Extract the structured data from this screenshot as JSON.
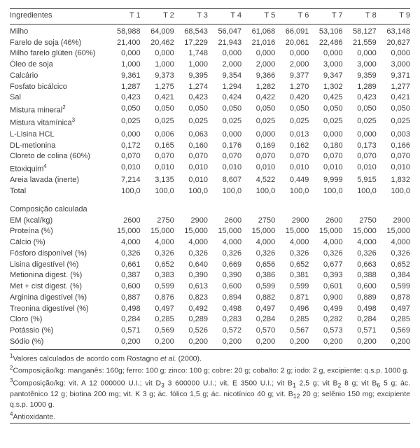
{
  "headers": [
    "Ingredientes",
    "T 1",
    "T 2",
    "T 3",
    "T 4",
    "T 5",
    "T 6",
    "T 7",
    "T 8",
    "T 9"
  ],
  "ingredients": [
    {
      "label": "Milho",
      "v": [
        "58,988",
        "64,009",
        "68,543",
        "56,047",
        "61,068",
        "66,091",
        "53,106",
        "58,127",
        "63,148"
      ]
    },
    {
      "label": "Farelo de soja (46%)",
      "v": [
        "21,400",
        "20,462",
        "17,229",
        "21,943",
        "21,016",
        "20,061",
        "22,486",
        "21,559",
        "20,627"
      ]
    },
    {
      "label": "Milho farelo glúten (60%)",
      "v": [
        "0,000",
        "0,000",
        "1,748",
        "0,000",
        "0,000",
        "0,000",
        "0,000",
        "0,000",
        "0,000"
      ]
    },
    {
      "label": "Óleo de soja",
      "v": [
        "1,000",
        "1,000",
        "1,000",
        "2,000",
        "2,000",
        "2,000",
        "3,000",
        "3,000",
        "3,000"
      ]
    },
    {
      "label": "Calcário",
      "v": [
        "9,361",
        "9,373",
        "9,395",
        "9,354",
        "9,366",
        "9,377",
        "9,347",
        "9,359",
        "9,371"
      ]
    },
    {
      "label": "Fosfato bicálcico",
      "v": [
        "1,287",
        "1,275",
        "1,274",
        "1,294",
        "1,282",
        "1,270",
        "1,302",
        "1,289",
        "1,277"
      ]
    },
    {
      "label": "Sal",
      "v": [
        "0,423",
        "0,421",
        "0,423",
        "0,424",
        "0,422",
        "0,420",
        "0,425",
        "0,423",
        "0,421"
      ]
    },
    {
      "label": "Mistura mineral",
      "sup": "2",
      "v": [
        "0,050",
        "0,050",
        "0,050",
        "0,050",
        "0,050",
        "0,050",
        "0,050",
        "0,050",
        "0,050"
      ]
    },
    {
      "label": "Mistura vitamínica",
      "sup": "3",
      "v": [
        "0,025",
        "0,025",
        "0,025",
        "0,025",
        "0,025",
        "0,025",
        "0,025",
        "0,025",
        "0,025"
      ]
    },
    {
      "label": "L-Lisina HCL",
      "v": [
        "0,000",
        "0,006",
        "0,063",
        "0,000",
        "0,000",
        "0,013",
        "0,000",
        "0,000",
        "0,003"
      ]
    },
    {
      "label": "DL-metionina",
      "v": [
        "0,172",
        "0,165",
        "0,160",
        "0,176",
        "0,169",
        "0,162",
        "0,180",
        "0,173",
        "0,166"
      ]
    },
    {
      "label": "Cloreto de colina (60%)",
      "v": [
        "0,070",
        "0,070",
        "0,070",
        "0,070",
        "0,070",
        "0,070",
        "0,070",
        "0,070",
        "0,070"
      ]
    },
    {
      "label": "Etoxiquim",
      "sup": "4",
      "v": [
        "0,010",
        "0,010",
        "0,010",
        "0,010",
        "0,010",
        "0,010",
        "0,010",
        "0,010",
        "0,010"
      ]
    },
    {
      "label": "Areia lavada (inerte)",
      "v": [
        "7,214",
        "3,135",
        "0,010",
        "8,607",
        "4,522",
        "0,449",
        "9,999",
        "5,915",
        "1,832"
      ]
    },
    {
      "label": "Total",
      "v": [
        "100,0",
        "100,0",
        "100,0",
        "100,0",
        "100,0",
        "100,0",
        "100,0",
        "100,0",
        "100,0"
      ]
    }
  ],
  "composition_title": "Composição calculada",
  "composition": [
    {
      "label": "EM (kcal/kg)",
      "v": [
        "2600",
        "2750",
        "2900",
        "2600",
        "2750",
        "2900",
        "2600",
        "2750",
        "2900"
      ]
    },
    {
      "label": "Proteína (%)",
      "v": [
        "15,000",
        "15,000",
        "15,000",
        "15,000",
        "15,000",
        "15,000",
        "15,000",
        "15,000",
        "15,000"
      ]
    },
    {
      "label": "Cálcio (%)",
      "v": [
        "4,000",
        "4,000",
        "4,000",
        "4,000",
        "4,000",
        "4,000",
        "4,000",
        "4,000",
        "4,000"
      ]
    },
    {
      "label": "Fósforo disponível (%)",
      "v": [
        "0,326",
        "0,326",
        "0,326",
        "0,326",
        "0,326",
        "0,326",
        "0,326",
        "0,326",
        "0,326"
      ]
    },
    {
      "label": "Lisina digestível (%)",
      "v": [
        "0,661",
        "0,652",
        "0,640",
        "0,669",
        "0,656",
        "0,652",
        "0,677",
        "0,663",
        "0,652"
      ]
    },
    {
      "label": "Metionina digest. (%)",
      "v": [
        "0,387",
        "0,383",
        "0,390",
        "0,390",
        "0,386",
        "0,381",
        "0,393",
        "0,388",
        "0,384"
      ]
    },
    {
      "label": "Met + cist digest. (%)",
      "v": [
        "0,600",
        "0,599",
        "0,613",
        "0,600",
        "0,599",
        "0,599",
        "0,601",
        "0,600",
        "0,599"
      ]
    },
    {
      "label": "Arginina digestível (%)",
      "v": [
        "0,887",
        "0,876",
        "0,823",
        "0,894",
        "0,882",
        "0,871",
        "0,900",
        "0,889",
        "0,878"
      ]
    },
    {
      "label": "Treonina digestível (%)",
      "v": [
        "0,498",
        "0,497",
        "0,492",
        "0,498",
        "0,497",
        "0,496",
        "0,499",
        "0,498",
        "0,497"
      ]
    },
    {
      "label": "Cloro (%)",
      "v": [
        "0,284",
        "0,285",
        "0,289",
        "0,283",
        "0,284",
        "0,285",
        "0,282",
        "0,284",
        "0,285"
      ]
    },
    {
      "label": "Potássio (%)",
      "v": [
        "0,571",
        "0,569",
        "0,526",
        "0,572",
        "0,570",
        "0,567",
        "0,573",
        "0,571",
        "0,569"
      ]
    },
    {
      "label": "Sódio (%)",
      "v": [
        "0,200",
        "0,200",
        "0,200",
        "0,200",
        "0,200",
        "0,200",
        "0,200",
        "0,200",
        "0,200"
      ]
    }
  ],
  "footnotes": [
    {
      "sup": "1",
      "html": "Valores calculados de acordo com Rostagno <i>et al.</i> (2000)."
    },
    {
      "sup": "2",
      "html": "Composição/kg: manganês: 160g; ferro: 100 g; zinco: 100 g; cobre: 20 g; cobalto: 2 g; iodo: 2 g, excipiente: q.s.p. 1000 g."
    },
    {
      "sup": "3",
      "html": "Composição/kg: vit. A 12 000000 U.I.; vit D<sub>3</sub> 3 600000 U.I.; vit. E 3500 U.I.; vit B<sub>1</sub> 2,5 g; vit B<sub>2</sub> 8 g; vit B<sub>6</sub> 5 g; ác. pantotênico 12 g; biotina 200 mg; vit. K 3 g; ác. fólico 1,5 g; ác. nicotínico 40 g; vit. B<sub>12</sub> 20 g; selênio 150 mg; excipiente q.s.p. 1000 g."
    },
    {
      "sup": "4",
      "html": "Antioxidante."
    }
  ]
}
